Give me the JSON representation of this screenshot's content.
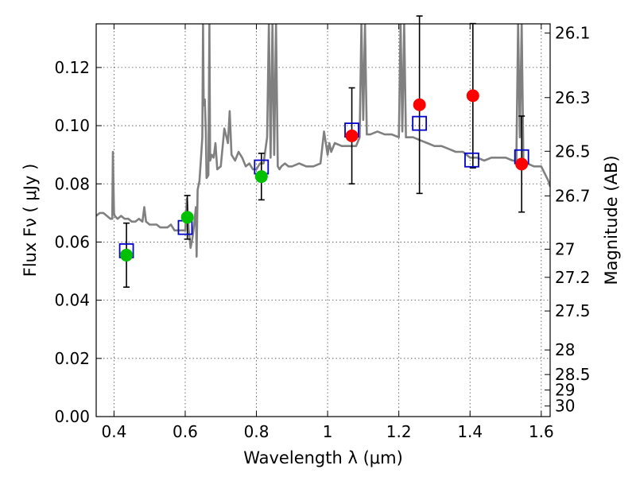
{
  "chart_data": {
    "type": "scatter",
    "xlabel": "Wavelength  λ (μm)",
    "ylabel": "Flux  Fν  ( μJy )",
    "y2label": "Magnitude (AB)",
    "xlim": [
      0.35,
      1.625
    ],
    "ylim": [
      0.0,
      0.135
    ],
    "grid": true,
    "x_ticks": [
      0.4,
      0.6,
      0.8,
      1.0,
      1.2,
      1.4,
      1.6
    ],
    "x_tick_labels": [
      "0.4",
      "0.6",
      "0.8",
      "1",
      "1.2",
      "1.4",
      "1.6"
    ],
    "y_ticks": [
      0.0,
      0.02,
      0.04,
      0.06,
      0.08,
      0.1,
      0.12
    ],
    "y_tick_labels": [
      "0.00",
      "0.02",
      "0.04",
      "0.06",
      "0.08",
      "0.10",
      "0.12"
    ],
    "mag_ticks": [
      26.1,
      26.3,
      26.5,
      26.7,
      27,
      27.2,
      27.5,
      28,
      28.5,
      29,
      30
    ],
    "mag_tick_labels": [
      "26.1",
      "26.3",
      "26.5",
      "26.7",
      "27",
      "27.2",
      "27.5",
      "28",
      "28.5",
      "29",
      "30"
    ],
    "series": [
      {
        "marker": "circle",
        "color": "#00c000",
        "points": [
          {
            "x": 0.435,
            "y": 0.0555,
            "err": 0.011
          },
          {
            "x": 0.606,
            "y": 0.0685,
            "err": 0.0075
          },
          {
            "x": 0.814,
            "y": 0.0825,
            "err": 0.008
          }
        ]
      },
      {
        "marker": "circle",
        "color": "#ff0000",
        "points": [
          {
            "x": 1.068,
            "y": 0.0965,
            "err": 0.0165
          },
          {
            "x": 1.258,
            "y": 0.1072,
            "err": 0.0305
          },
          {
            "x": 1.408,
            "y": 0.1103,
            "err": 0.0248
          },
          {
            "x": 1.545,
            "y": 0.0868,
            "err": 0.0165
          }
        ]
      },
      {
        "marker": "square-open",
        "color": "#0000cc",
        "points": [
          {
            "x": 0.435,
            "y": 0.057
          },
          {
            "x": 0.6,
            "y": 0.065
          },
          {
            "x": 0.814,
            "y": 0.0858
          },
          {
            "x": 1.068,
            "y": 0.0985
          },
          {
            "x": 1.258,
            "y": 0.1008
          },
          {
            "x": 1.405,
            "y": 0.0882
          },
          {
            "x": 1.545,
            "y": 0.0893
          }
        ]
      },
      {
        "marker": "line",
        "color": "#808080",
        "x": [
          0.35,
          0.36,
          0.37,
          0.38,
          0.39,
          0.395,
          0.397,
          0.4,
          0.402,
          0.41,
          0.42,
          0.43,
          0.44,
          0.45,
          0.46,
          0.47,
          0.48,
          0.485,
          0.49,
          0.5,
          0.51,
          0.52,
          0.53,
          0.54,
          0.55,
          0.56,
          0.57,
          0.58,
          0.59,
          0.6,
          0.605,
          0.61,
          0.612,
          0.615,
          0.62,
          0.625,
          0.63,
          0.632,
          0.635,
          0.64,
          0.645,
          0.648,
          0.65,
          0.652,
          0.655,
          0.658,
          0.66,
          0.665,
          0.668,
          0.67,
          0.675,
          0.68,
          0.685,
          0.69,
          0.7,
          0.71,
          0.72,
          0.725,
          0.73,
          0.74,
          0.75,
          0.76,
          0.77,
          0.78,
          0.79,
          0.8,
          0.81,
          0.82,
          0.83,
          0.835,
          0.84,
          0.845,
          0.85,
          0.855,
          0.86,
          0.865,
          0.87,
          0.88,
          0.89,
          0.9,
          0.92,
          0.94,
          0.96,
          0.98,
          0.99,
          1.0,
          1.005,
          1.01,
          1.02,
          1.04,
          1.06,
          1.08,
          1.09,
          1.095,
          1.1,
          1.105,
          1.11,
          1.12,
          1.14,
          1.16,
          1.18,
          1.2,
          1.205,
          1.21,
          1.215,
          1.22,
          1.24,
          1.26,
          1.28,
          1.3,
          1.32,
          1.34,
          1.36,
          1.38,
          1.4,
          1.42,
          1.44,
          1.46,
          1.48,
          1.5,
          1.52,
          1.53,
          1.535,
          1.54,
          1.545,
          1.55,
          1.56,
          1.58,
          1.6,
          1.62,
          1.625
        ],
        "y": [
          0.069,
          0.07,
          0.07,
          0.069,
          0.068,
          0.068,
          0.091,
          0.07,
          0.069,
          0.068,
          0.069,
          0.068,
          0.068,
          0.067,
          0.067,
          0.068,
          0.067,
          0.072,
          0.067,
          0.066,
          0.066,
          0.066,
          0.065,
          0.065,
          0.065,
          0.066,
          0.064,
          0.064,
          0.064,
          0.064,
          0.075,
          0.064,
          0.062,
          0.058,
          0.061,
          0.066,
          0.072,
          0.055,
          0.078,
          0.081,
          0.09,
          0.096,
          0.135,
          0.107,
          0.109,
          0.098,
          0.082,
          0.083,
          0.135,
          0.088,
          0.09,
          0.089,
          0.094,
          0.085,
          0.086,
          0.099,
          0.094,
          0.105,
          0.09,
          0.088,
          0.091,
          0.089,
          0.086,
          0.087,
          0.085,
          0.085,
          0.087,
          0.087,
          0.096,
          0.135,
          0.089,
          0.135,
          0.09,
          0.135,
          0.086,
          0.085,
          0.086,
          0.087,
          0.086,
          0.086,
          0.087,
          0.086,
          0.086,
          0.087,
          0.098,
          0.09,
          0.094,
          0.091,
          0.094,
          0.093,
          0.093,
          0.093,
          0.096,
          0.135,
          0.102,
          0.135,
          0.097,
          0.097,
          0.098,
          0.097,
          0.097,
          0.096,
          0.135,
          0.098,
          0.135,
          0.096,
          0.096,
          0.095,
          0.094,
          0.093,
          0.093,
          0.092,
          0.091,
          0.091,
          0.089,
          0.089,
          0.088,
          0.089,
          0.089,
          0.089,
          0.088,
          0.088,
          0.135,
          0.096,
          0.135,
          0.087,
          0.087,
          0.086,
          0.086,
          0.081,
          0.079
        ]
      }
    ]
  }
}
